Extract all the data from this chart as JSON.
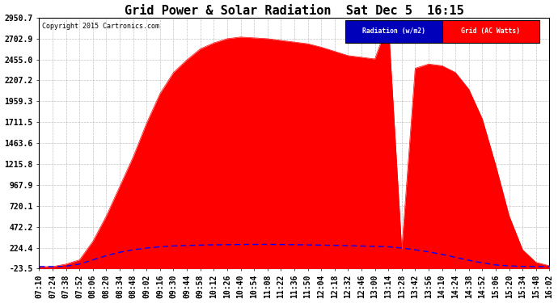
{
  "title": "Grid Power & Solar Radiation  Sat Dec 5  16:15",
  "copyright": "Copyright 2015 Cartronics.com",
  "background_color": "#ffffff",
  "plot_bg_color": "#ffffff",
  "grid_color": "#aaaaaa",
  "yticks": [
    -23.5,
    224.4,
    472.2,
    720.1,
    967.9,
    1215.8,
    1463.6,
    1711.5,
    1959.3,
    2207.2,
    2455.0,
    2702.9,
    2950.7
  ],
  "ymin": -23.5,
  "ymax": 2950.7,
  "radiation_color": "#0000ff",
  "grid_ac_color": "#ff0000",
  "legend_radiation_bg": "#0000bb",
  "legend_grid_bg": "#ff0000",
  "legend_text_color": "#ffffff",
  "title_fontsize": 11,
  "tick_fontsize": 7,
  "xlabel_rotation": 90,
  "time_labels": [
    "07:10",
    "07:24",
    "07:38",
    "07:52",
    "08:06",
    "08:20",
    "08:34",
    "08:48",
    "09:02",
    "09:16",
    "09:30",
    "09:44",
    "09:58",
    "10:12",
    "10:26",
    "10:40",
    "10:54",
    "11:08",
    "11:22",
    "11:36",
    "11:50",
    "12:04",
    "12:18",
    "12:32",
    "12:46",
    "13:00",
    "13:14",
    "13:28",
    "13:42",
    "13:56",
    "14:10",
    "14:24",
    "14:38",
    "14:52",
    "15:06",
    "15:20",
    "15:34",
    "15:48",
    "16:02"
  ],
  "grid_ac_values": [
    0,
    0,
    30,
    80,
    300,
    600,
    950,
    1300,
    1700,
    2050,
    2300,
    2450,
    2580,
    2650,
    2700,
    2720,
    2710,
    2700,
    2680,
    2660,
    2640,
    2600,
    2550,
    2500,
    2480,
    2460,
    2900,
    200,
    2350,
    2400,
    2380,
    2300,
    2100,
    1750,
    1200,
    600,
    200,
    50,
    10
  ],
  "radiation_values": [
    0,
    0,
    5,
    30,
    80,
    130,
    170,
    200,
    220,
    235,
    245,
    250,
    255,
    258,
    260,
    262,
    263,
    263,
    262,
    260,
    258,
    255,
    252,
    248,
    244,
    240,
    235,
    220,
    200,
    175,
    145,
    110,
    75,
    45,
    20,
    8,
    3,
    1,
    0
  ]
}
